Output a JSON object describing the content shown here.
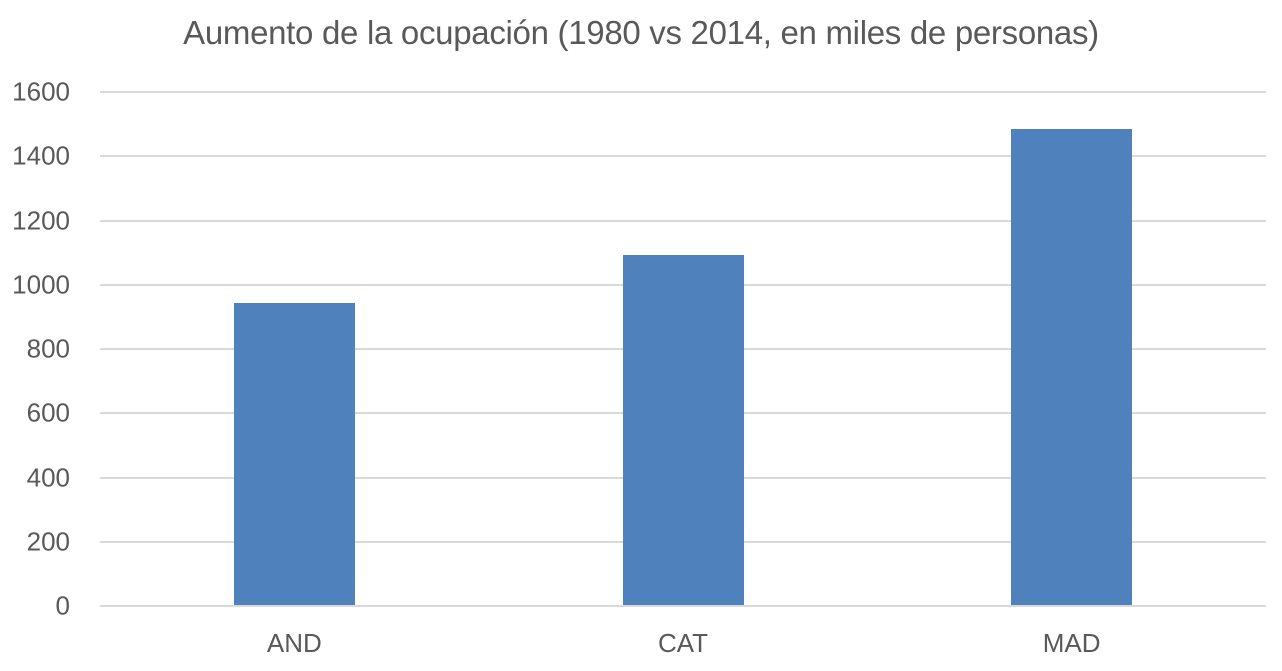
{
  "chart_data": {
    "type": "bar",
    "title": "Aumento de la ocupación (1980 vs 2014, en miles de personas)",
    "xlabel": "",
    "ylabel": "",
    "categories": [
      "AND",
      "CAT",
      "MAD"
    ],
    "values": [
      943,
      1092,
      1485
    ],
    "ylim": [
      0,
      1600
    ],
    "yticks": [
      "0",
      "200",
      "400",
      "600",
      "800",
      "1000",
      "1200",
      "1400",
      "1600"
    ],
    "grid": true,
    "legend": "none",
    "bar_color": "#4f81bd",
    "gridline_color": "#d9d9d9",
    "text_color": "#595959"
  }
}
